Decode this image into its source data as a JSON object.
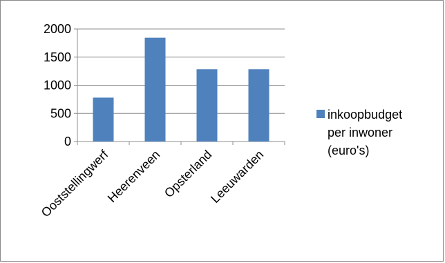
{
  "chart_data": {
    "type": "bar",
    "categories": [
      "Ooststellingwerf",
      "Heerenveen",
      "Opsterland",
      "Leeuwarden"
    ],
    "series": [
      {
        "name": "inkoopbudget per inwoner (euro's)",
        "values": [
          780,
          1845,
          1285,
          1285
        ],
        "color": "#4f81bd"
      }
    ],
    "ylim": [
      0,
      2000
    ],
    "yticks": [
      0,
      500,
      1000,
      1500,
      2000
    ],
    "grid": true,
    "legend_position": "right",
    "legend_lines": [
      "inkoopbudget",
      "per inwoner",
      "(euro's)"
    ]
  }
}
